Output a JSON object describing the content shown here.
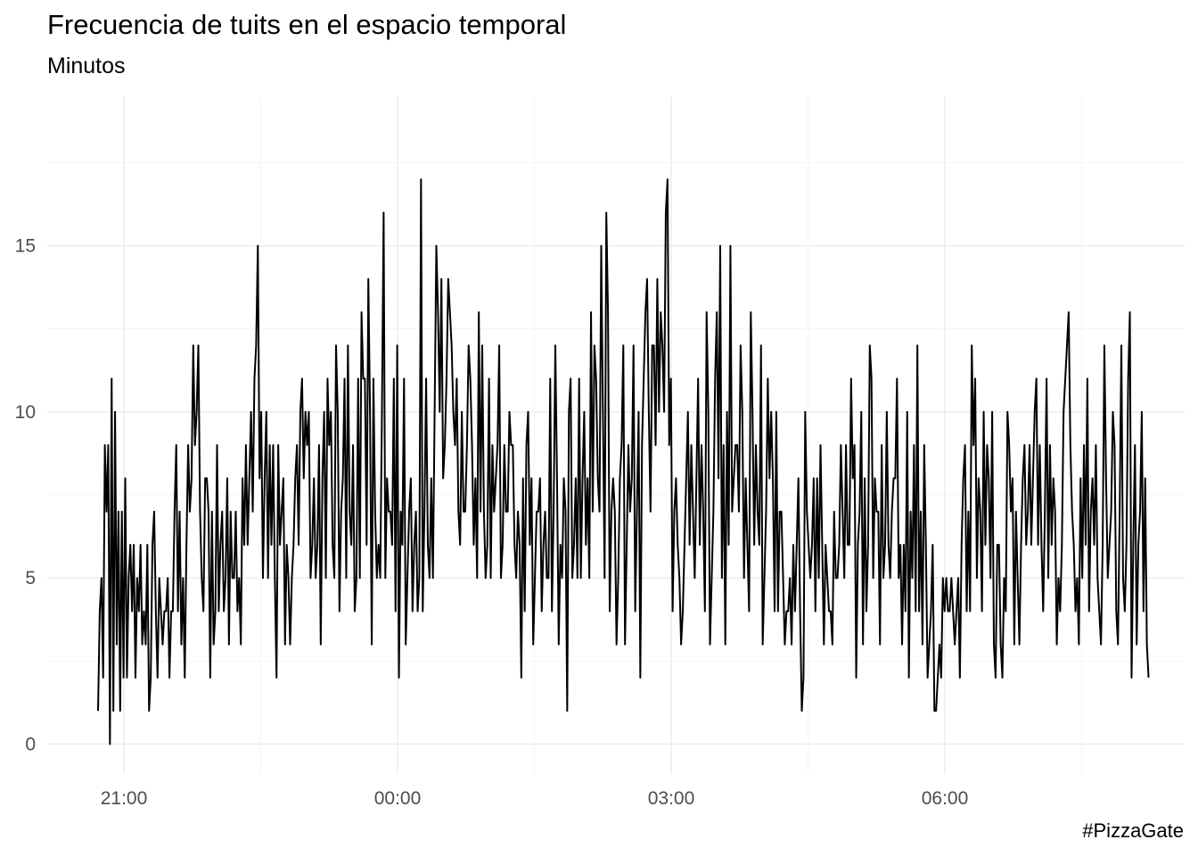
{
  "chart_data": {
    "type": "line",
    "title": "Frecuencia de tuits en el espacio temporal",
    "subtitle": "Minutos",
    "caption": "#PizzaGate",
    "xlabel": "",
    "ylabel": "",
    "x_unit": "time of day (spans midnight)",
    "x_ticks": [
      "21:00",
      "00:00",
      "03:00",
      "06:00"
    ],
    "y_ticks": [
      0,
      5,
      10,
      15
    ],
    "ylim": [
      -0.9,
      19.5
    ],
    "grid": true,
    "line_color": "#000000",
    "series": [
      {
        "x_start": "20:43",
        "x_end": "08:14",
        "interval_minutes": 1,
        "values": [
          1,
          4,
          5,
          2,
          9,
          7,
          9,
          0,
          11,
          1,
          10,
          3,
          7,
          1,
          7,
          2,
          8,
          2,
          5,
          6,
          4,
          6,
          2,
          5,
          4,
          6,
          3,
          4,
          3,
          6,
          1,
          2,
          6,
          7,
          4,
          2,
          5,
          4,
          3,
          4,
          4,
          5,
          2,
          4,
          4,
          7,
          9,
          4,
          7,
          3,
          5,
          2,
          6,
          9,
          7,
          8,
          12,
          9,
          10,
          12,
          7,
          5,
          4,
          8,
          8,
          7,
          2,
          7,
          3,
          4,
          9,
          4,
          6,
          7,
          4,
          5,
          8,
          3,
          7,
          5,
          5,
          7,
          4,
          5,
          3,
          8,
          6,
          9,
          6,
          8,
          10,
          7,
          11,
          12,
          15,
          8,
          10,
          5,
          8,
          10,
          5,
          9,
          6,
          9,
          5,
          2,
          9,
          6,
          7,
          8,
          3,
          6,
          5,
          3,
          5,
          6,
          8,
          9,
          6,
          10,
          11,
          8,
          10,
          9,
          10,
          5,
          6,
          8,
          5,
          6,
          9,
          3,
          8,
          10,
          5,
          11,
          9,
          10,
          6,
          5,
          12,
          10,
          4,
          7,
          8,
          11,
          5,
          12,
          7,
          6,
          9,
          4,
          5,
          11,
          5,
          13,
          11,
          11,
          6,
          14,
          10,
          3,
          11,
          7,
          5,
          6,
          5,
          10,
          16,
          5,
          8,
          7,
          7,
          6,
          11,
          4,
          12,
          2,
          7,
          6,
          11,
          3,
          5,
          7,
          8,
          4,
          6,
          7,
          4,
          5,
          17,
          4,
          7,
          11,
          6,
          5,
          8,
          5,
          10,
          15,
          13,
          10,
          14,
          8,
          9,
          11,
          14,
          13,
          12,
          10,
          9,
          11,
          7,
          6,
          10,
          7,
          7,
          9,
          12,
          11,
          9,
          6,
          8,
          5,
          13,
          7,
          12,
          7,
          5,
          6,
          11,
          5,
          9,
          7,
          8,
          9,
          12,
          5,
          6,
          9,
          7,
          7,
          10,
          9,
          9,
          6,
          5,
          7,
          6,
          2,
          8,
          4,
          9,
          10,
          6,
          8,
          3,
          5,
          7,
          7,
          8,
          4,
          6,
          7,
          5,
          5,
          11,
          4,
          7,
          12,
          8,
          3,
          6,
          5,
          8,
          7,
          1,
          10,
          11,
          5,
          6,
          8,
          5,
          11,
          5,
          8,
          10,
          6,
          8,
          5,
          13,
          7,
          12,
          11,
          8,
          7,
          15,
          10,
          5,
          16,
          13,
          4,
          7,
          8,
          7,
          3,
          5,
          8,
          9,
          12,
          3,
          6,
          9,
          7,
          8,
          12,
          4,
          7,
          10,
          2,
          9,
          11,
          13,
          14,
          10,
          7,
          12,
          12,
          9,
          14,
          10,
          13,
          12,
          10,
          16,
          17,
          9,
          11,
          4,
          7,
          8,
          6,
          5,
          3,
          4,
          6,
          8,
          10,
          6,
          9,
          7,
          5,
          8,
          11,
          6,
          9,
          7,
          4,
          13,
          10,
          3,
          5,
          7,
          11,
          13,
          8,
          15,
          5,
          9,
          3,
          10,
          6,
          15,
          7,
          8,
          9,
          9,
          7,
          12,
          10,
          5,
          8,
          6,
          4,
          13,
          10,
          6,
          9,
          7,
          6,
          12,
          3,
          5,
          7,
          11,
          8,
          10,
          8,
          4,
          10,
          4,
          7,
          7,
          5,
          3,
          4,
          4,
          5,
          3,
          6,
          4,
          6,
          8,
          4,
          1,
          2,
          10,
          7,
          6,
          5,
          6,
          8,
          4,
          8,
          5,
          9,
          6,
          3,
          6,
          5,
          4,
          4,
          3,
          7,
          5,
          5,
          6,
          9,
          7,
          5,
          9,
          6,
          6,
          11,
          8,
          9,
          2,
          6,
          7,
          10,
          3,
          8,
          4,
          6,
          12,
          11,
          5,
          8,
          7,
          7,
          3,
          9,
          5,
          6,
          10,
          6,
          5,
          7,
          8,
          8,
          11,
          5,
          6,
          3,
          6,
          4,
          10,
          2,
          7,
          5,
          9,
          4,
          12,
          4,
          7,
          3,
          9,
          6,
          2,
          3,
          4,
          6,
          1,
          1,
          2,
          3,
          2,
          5,
          4,
          5,
          4,
          4,
          5,
          4,
          3,
          4,
          5,
          2,
          6,
          8,
          9,
          4,
          7,
          4,
          12,
          9,
          11,
          5,
          8,
          7,
          4,
          10,
          6,
          9,
          8,
          5,
          10,
          3,
          2,
          6,
          6,
          3,
          2,
          5,
          4,
          10,
          9,
          7,
          8,
          3,
          7,
          5,
          3,
          6,
          8,
          9,
          6,
          7,
          9,
          6,
          8,
          10,
          11,
          6,
          9,
          6,
          4,
          7,
          11,
          5,
          9,
          6,
          8,
          7,
          3,
          5,
          4,
          6,
          10,
          11,
          12,
          13,
          9,
          7,
          6,
          4,
          5,
          3,
          8,
          5,
          9,
          6,
          11,
          4,
          7,
          8,
          6,
          9,
          5,
          4,
          3,
          6,
          12,
          8,
          5,
          6,
          7,
          10,
          9,
          4,
          3,
          7,
          12,
          5,
          4,
          6,
          11,
          13,
          2,
          6,
          9,
          3,
          6,
          7,
          10,
          4,
          8,
          3,
          2
        ]
      }
    ]
  }
}
